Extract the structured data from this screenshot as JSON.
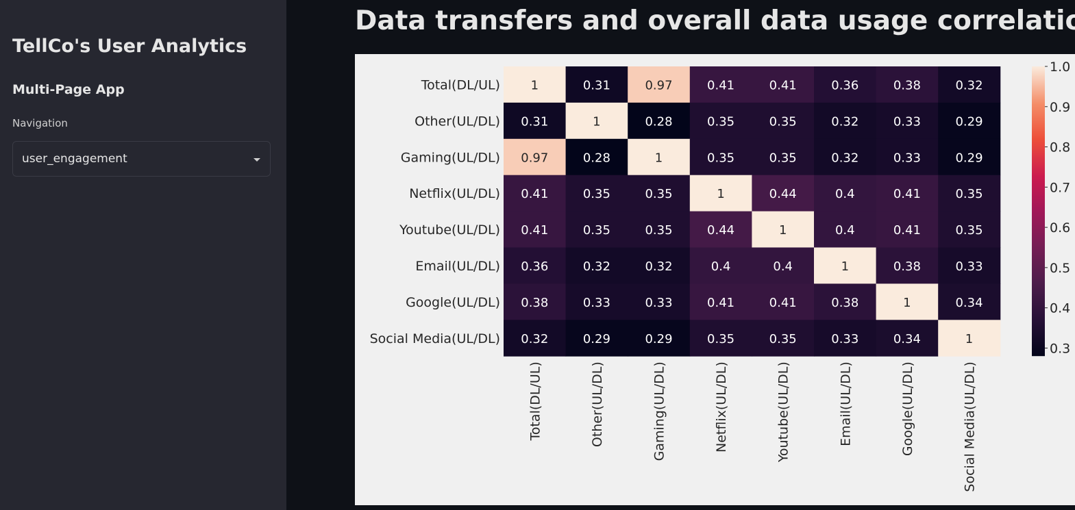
{
  "sidebar": {
    "title": "TellCo's User Analytics",
    "subtitle": "Multi-Page App",
    "nav_label": "Navigation",
    "nav_selected": "user_engagement"
  },
  "main": {
    "title": "Data transfers and overall data usage correlation."
  },
  "chart_data": {
    "type": "heatmap",
    "title": "",
    "rows": [
      "Total(DL/UL)",
      "Other(UL/DL)",
      "Gaming(UL/DL)",
      "Netflix(UL/DL)",
      "Youtube(UL/DL)",
      "Email(UL/DL)",
      "Google(UL/DL)",
      "Social Media(UL/DL)"
    ],
    "columns": [
      "Total(DL/UL)",
      "Other(UL/DL)",
      "Gaming(UL/DL)",
      "Netflix(UL/DL)",
      "Youtube(UL/DL)",
      "Email(UL/DL)",
      "Google(UL/DL)",
      "Social Media(UL/DL)"
    ],
    "values": [
      [
        1,
        0.31,
        0.97,
        0.41,
        0.41,
        0.36,
        0.38,
        0.32
      ],
      [
        0.31,
        1,
        0.28,
        0.35,
        0.35,
        0.32,
        0.33,
        0.29
      ],
      [
        0.97,
        0.28,
        1,
        0.35,
        0.35,
        0.32,
        0.33,
        0.29
      ],
      [
        0.41,
        0.35,
        0.35,
        1,
        0.44,
        0.4,
        0.41,
        0.35
      ],
      [
        0.41,
        0.35,
        0.35,
        0.44,
        1,
        0.4,
        0.41,
        0.35
      ],
      [
        0.36,
        0.32,
        0.32,
        0.4,
        0.4,
        1,
        0.38,
        0.33
      ],
      [
        0.38,
        0.33,
        0.33,
        0.41,
        0.41,
        0.38,
        1,
        0.34
      ],
      [
        0.32,
        0.29,
        0.29,
        0.35,
        0.35,
        0.33,
        0.34,
        1
      ]
    ],
    "colorbar_ticks": [
      1.0,
      0.9,
      0.8,
      0.7,
      0.6,
      0.5,
      0.4,
      0.3
    ],
    "colorbar_range": [
      0.28,
      1.0
    ],
    "colormap": "rocket"
  }
}
